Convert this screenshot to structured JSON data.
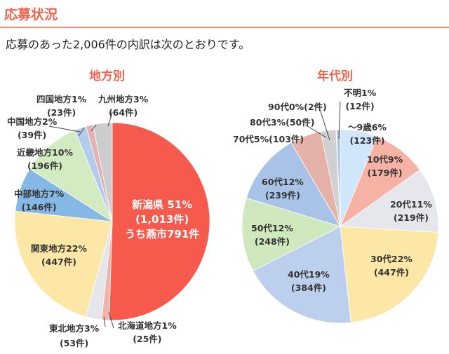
{
  "header": {
    "title": "応募状況",
    "intro": "応募のあった2,006件の内訳は次のとおりです。"
  },
  "chart_data": [
    {
      "type": "pie",
      "title": "地方別",
      "start": "top",
      "direction": "clockwise",
      "slices": [
        {
          "label": "新潟県 51%",
          "count": "(1,013件)",
          "note": "うち燕市791件",
          "value": 1013,
          "color": "#f65a4d"
        },
        {
          "label": "北海道地方1%",
          "count": "(25件)",
          "value": 25,
          "color": "#f2b3ad"
        },
        {
          "label": "東北地方3%",
          "count": "(53件)",
          "value": 53,
          "color": "#e4e6ec"
        },
        {
          "label": "関東地方22%",
          "count": "(447件)",
          "value": 447,
          "color": "#fde7a6"
        },
        {
          "label": "中部地方7%",
          "count": "(146件)",
          "value": 146,
          "color": "#86b8e6"
        },
        {
          "label": "近畿地方10%",
          "count": "(196件)",
          "value": 196,
          "color": "#d3ebc0"
        },
        {
          "label": "中国地方2%",
          "count": "(39件)",
          "value": 39,
          "color": "#b3cbec"
        },
        {
          "label": "四国地方1%",
          "count": "(23件)",
          "value": 23,
          "color": "#e3b3b3"
        },
        {
          "label": "九州地方3%",
          "count": "(64件)",
          "value": 64,
          "color": "#cdcdcf"
        }
      ]
    },
    {
      "type": "pie",
      "title": "年代別",
      "start": "top",
      "direction": "clockwise",
      "slices": [
        {
          "label": "〜9歳6%",
          "count": "(123件)",
          "value": 123,
          "color": "#cfe6fb"
        },
        {
          "label": "10代9%",
          "count": "(179件)",
          "value": 179,
          "color": "#f7b2a6"
        },
        {
          "label": "20代11%",
          "count": "(219件)",
          "value": 219,
          "color": "#e6e7ec"
        },
        {
          "label": "30代22%",
          "count": "(447件)",
          "value": 447,
          "color": "#fde7a6"
        },
        {
          "label": "40代19%",
          "count": "(384件)",
          "value": 384,
          "color": "#bcd0ee"
        },
        {
          "label": "50代12%",
          "count": "(248件)",
          "value": 248,
          "color": "#cfe8bd"
        },
        {
          "label": "60代12%",
          "count": "(239件)",
          "value": 239,
          "color": "#a9c3e8"
        },
        {
          "label": "70代5%",
          "count": "(103件)",
          "value": 103,
          "color": "#e4b2a9"
        },
        {
          "label": "80代3%",
          "count": "(50件)",
          "value": 50,
          "color": "#d0d0d2"
        },
        {
          "label": "90代0%",
          "count": "(2件)",
          "value": 2,
          "color": "#d6a66a"
        },
        {
          "label": "不明1%",
          "count": "(12件)",
          "value": 12,
          "color": "#a9c3e8"
        }
      ]
    }
  ]
}
